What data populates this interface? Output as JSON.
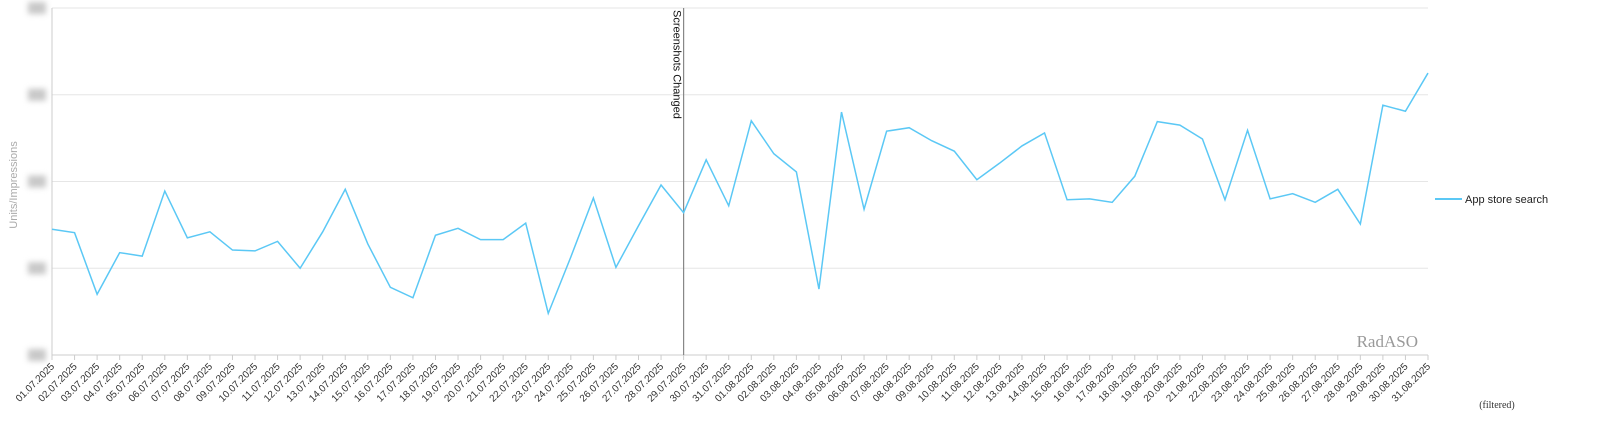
{
  "chart_data": {
    "type": "line",
    "title": "",
    "xlabel": "",
    "ylabel": "Units/Impressions",
    "ylim": [
      0,
      4
    ],
    "yticks_hidden": true,
    "grid": true,
    "legend_position": "right",
    "watermark": "RadASO",
    "footnote": "(filtered)",
    "categories": [
      "01.07.2025",
      "02.07.2025",
      "03.07.2025",
      "04.07.2025",
      "05.07.2025",
      "06.07.2025",
      "07.07.2025",
      "08.07.2025",
      "09.07.2025",
      "10.07.2025",
      "11.07.2025",
      "12.07.2025",
      "13.07.2025",
      "14.07.2025",
      "15.07.2025",
      "16.07.2025",
      "17.07.2025",
      "18.07.2025",
      "19.07.2025",
      "20.07.2025",
      "21.07.2025",
      "22.07.2025",
      "23.07.2025",
      "24.07.2025",
      "25.07.2025",
      "26.07.2025",
      "27.07.2025",
      "28.07.2025",
      "29.07.2025",
      "30.07.2025",
      "31.07.2025",
      "01.08.2025",
      "02.08.2025",
      "03.08.2025",
      "04.08.2025",
      "05.08.2025",
      "06.08.2025",
      "07.08.2025",
      "08.08.2025",
      "09.08.2025",
      "10.08.2025",
      "11.08.2025",
      "12.08.2025",
      "13.08.2025",
      "14.08.2025",
      "15.08.2025",
      "16.08.2025",
      "17.08.2025",
      "18.08.2025",
      "19.08.2025",
      "20.08.2025",
      "21.08.2025",
      "22.08.2025",
      "23.08.2025",
      "24.08.2025",
      "25.08.2025",
      "26.08.2025",
      "27.08.2025",
      "28.08.2025",
      "29.08.2025",
      "30.08.2025",
      "31.08.2025"
    ],
    "series": [
      {
        "name": "App store search",
        "color": "#5bc8f5",
        "values": [
          1.45,
          1.41,
          0.7,
          1.18,
          1.14,
          1.89,
          1.35,
          1.42,
          1.21,
          1.2,
          1.31,
          1.0,
          1.42,
          1.91,
          1.28,
          0.78,
          0.66,
          1.38,
          1.46,
          1.33,
          1.33,
          1.52,
          0.48,
          1.13,
          1.81,
          1.01,
          1.49,
          1.96,
          1.64,
          2.25,
          1.72,
          2.7,
          2.32,
          2.11,
          0.76,
          2.8,
          1.68,
          2.58,
          2.62,
          2.47,
          2.35,
          2.02,
          2.21,
          2.41,
          2.56,
          1.79,
          1.8,
          1.76,
          2.06,
          2.69,
          2.65,
          2.49,
          1.79,
          2.59,
          1.8,
          1.86,
          1.76,
          1.91,
          1.51,
          2.88,
          2.81,
          3.25
        ]
      }
    ],
    "annotations": [
      {
        "x": "29.07.2025",
        "label": "Screenshots Changed"
      }
    ]
  }
}
